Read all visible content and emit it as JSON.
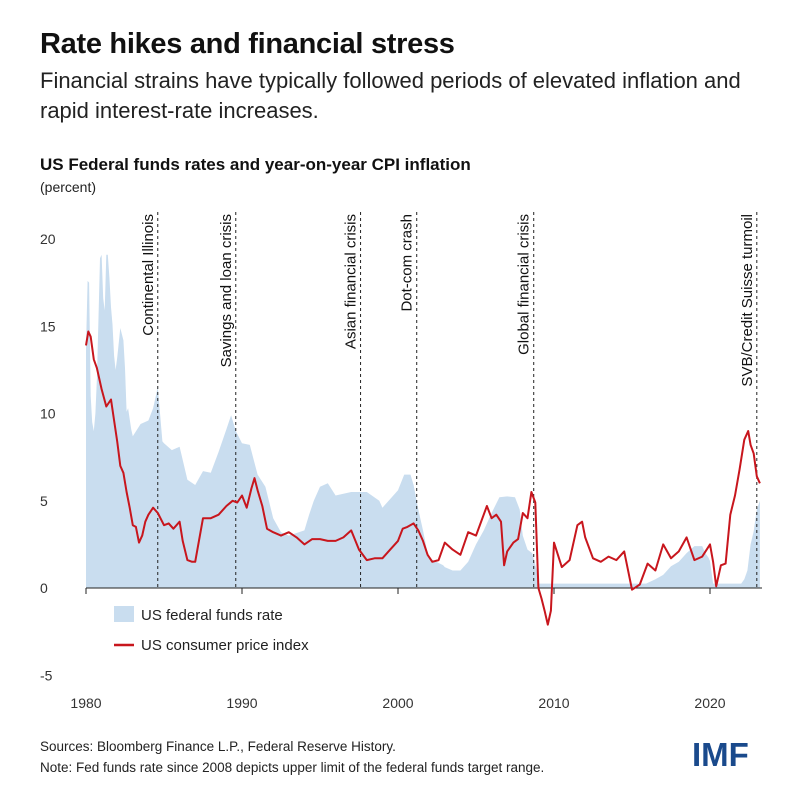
{
  "title": "Rate hikes and financial stress",
  "subtitle": "Financial strains have typically followed periods of elevated inflation and rapid interest-rate increases.",
  "chart_data": {
    "type": "area",
    "title": "US Federal funds rates and year-on-year CPI inflation",
    "unit_label": "(percent)",
    "xlabel": "",
    "ylabel": "",
    "xlim": [
      1980,
      2023.2
    ],
    "ylim": [
      -5,
      20
    ],
    "y_ticks": [
      -5,
      0,
      5,
      10,
      15,
      20
    ],
    "x_ticks": [
      1980,
      1990,
      2000,
      2010,
      2020
    ],
    "grid": false,
    "legend_placement": "bottom-left",
    "series": [
      {
        "name": "US federal funds rate",
        "kind": "area",
        "color": "#c9ddef",
        "x": [
          1980.0,
          1980.1,
          1980.2,
          1980.3,
          1980.4,
          1980.5,
          1980.6,
          1980.7,
          1980.8,
          1980.9,
          1981.0,
          1981.1,
          1981.2,
          1981.3,
          1981.4,
          1981.5,
          1981.6,
          1981.7,
          1981.8,
          1981.9,
          1982.0,
          1982.2,
          1982.4,
          1982.5,
          1982.6,
          1982.7,
          1982.9,
          1983.0,
          1983.5,
          1984.0,
          1984.3,
          1984.6,
          1984.9,
          1985.0,
          1985.5,
          1986.0,
          1986.5,
          1987.0,
          1987.5,
          1988.0,
          1988.5,
          1989.0,
          1989.3,
          1989.6,
          1990.0,
          1990.5,
          1991.0,
          1991.5,
          1992.0,
          1992.5,
          1993.0,
          1994.0,
          1994.3,
          1994.6,
          1995.0,
          1995.5,
          1996.0,
          1997.0,
          1998.0,
          1998.8,
          1999.0,
          1999.5,
          2000.0,
          2000.4,
          2000.8,
          2001.0,
          2001.3,
          2001.6,
          2001.9,
          2002.0,
          2002.9,
          2003.0,
          2003.5,
          2004.0,
          2004.5,
          2005.0,
          2005.5,
          2006.0,
          2006.5,
          2007.0,
          2007.5,
          2007.8,
          2008.0,
          2008.3,
          2008.6,
          2008.9,
          2009.0,
          2015.9,
          2016.5,
          2017.0,
          2017.5,
          2018.0,
          2018.5,
          2019.0,
          2019.5,
          2019.7,
          2019.9,
          2020.0,
          2020.2,
          2021.0,
          2022.0,
          2022.2,
          2022.4,
          2022.5,
          2022.6,
          2022.8,
          2023.0,
          2023.2
        ],
        "values": [
          13.8,
          17.6,
          17.5,
          11.0,
          9.5,
          9.0,
          10.0,
          12.0,
          15.5,
          18.9,
          19.1,
          16.6,
          15.9,
          19.1,
          19.1,
          17.8,
          16.1,
          15.1,
          13.3,
          12.5,
          13.2,
          14.9,
          14.2,
          12.6,
          10.1,
          10.3,
          9.1,
          8.7,
          9.4,
          9.6,
          10.3,
          11.5,
          8.4,
          8.3,
          7.9,
          8.1,
          6.2,
          5.9,
          6.7,
          6.6,
          7.8,
          9.1,
          9.9,
          9.0,
          8.3,
          8.2,
          6.5,
          5.8,
          4.0,
          3.2,
          3.0,
          3.3,
          4.2,
          5.0,
          5.8,
          6.0,
          5.3,
          5.5,
          5.5,
          5.0,
          4.6,
          5.1,
          5.6,
          6.5,
          6.5,
          5.9,
          4.5,
          3.3,
          2.0,
          1.7,
          1.3,
          1.2,
          1.0,
          1.0,
          1.5,
          2.5,
          3.3,
          4.3,
          5.2,
          5.25,
          5.2,
          4.5,
          3.0,
          2.2,
          2.0,
          1.0,
          0.25,
          0.25,
          0.5,
          0.75,
          1.25,
          1.5,
          2.0,
          2.4,
          2.4,
          2.0,
          1.75,
          1.55,
          0.25,
          0.25,
          0.25,
          0.5,
          1.0,
          1.75,
          2.5,
          3.25,
          4.5,
          5.0
        ]
      },
      {
        "name": "US consumer price index",
        "kind": "line",
        "color": "#c8161d",
        "x": [
          1980.0,
          1980.15,
          1980.3,
          1980.5,
          1980.7,
          1981.0,
          1981.3,
          1981.6,
          1981.8,
          1982.0,
          1982.2,
          1982.4,
          1982.6,
          1982.8,
          1983.0,
          1983.2,
          1983.4,
          1983.6,
          1983.8,
          1984.0,
          1984.3,
          1984.6,
          1985.0,
          1985.3,
          1985.6,
          1986.0,
          1986.2,
          1986.5,
          1986.8,
          1987.0,
          1987.5,
          1988.0,
          1988.5,
          1989.0,
          1989.4,
          1989.7,
          1990.0,
          1990.3,
          1990.6,
          1990.8,
          1991.0,
          1991.3,
          1991.6,
          1992.0,
          1992.5,
          1993.0,
          1993.5,
          1994.0,
          1994.5,
          1995.0,
          1995.5,
          1996.0,
          1996.5,
          1997.0,
          1997.5,
          1998.0,
          1998.5,
          1999.0,
          1999.5,
          2000.0,
          2000.3,
          2000.6,
          2001.0,
          2001.3,
          2001.6,
          2001.9,
          2002.2,
          2002.6,
          2003.0,
          2003.5,
          2004.0,
          2004.5,
          2005.0,
          2005.7,
          2006.0,
          2006.3,
          2006.6,
          2006.8,
          2007.0,
          2007.4,
          2007.7,
          2008.0,
          2008.3,
          2008.55,
          2008.8,
          2009.0,
          2009.2,
          2009.4,
          2009.6,
          2009.8,
          2010.0,
          2010.5,
          2011.0,
          2011.5,
          2011.8,
          2012.0,
          2012.5,
          2013.0,
          2013.5,
          2014.0,
          2014.5,
          2015.0,
          2015.5,
          2016.0,
          2016.5,
          2017.0,
          2017.5,
          2018.0,
          2018.5,
          2019.0,
          2019.5,
          2020.0,
          2020.2,
          2020.4,
          2020.7,
          2021.0,
          2021.3,
          2021.6,
          2021.9,
          2022.2,
          2022.45,
          2022.6,
          2022.8,
          2023.0,
          2023.2
        ],
        "values": [
          13.9,
          14.7,
          14.4,
          13.1,
          12.6,
          11.4,
          10.4,
          10.8,
          9.6,
          8.4,
          7.0,
          6.6,
          5.5,
          4.6,
          3.6,
          3.5,
          2.6,
          3.0,
          3.8,
          4.2,
          4.6,
          4.3,
          3.6,
          3.7,
          3.4,
          3.8,
          2.7,
          1.6,
          1.5,
          1.5,
          4.0,
          4.0,
          4.2,
          4.7,
          5.0,
          4.9,
          5.3,
          4.6,
          5.7,
          6.3,
          5.6,
          4.7,
          3.4,
          3.2,
          3.0,
          3.2,
          2.9,
          2.5,
          2.8,
          2.8,
          2.7,
          2.7,
          2.9,
          3.3,
          2.2,
          1.6,
          1.7,
          1.7,
          2.2,
          2.7,
          3.4,
          3.5,
          3.7,
          3.3,
          2.7,
          1.9,
          1.5,
          1.6,
          2.6,
          2.2,
          1.9,
          3.2,
          3.0,
          4.7,
          4.0,
          4.2,
          3.8,
          1.3,
          2.1,
          2.6,
          2.8,
          4.3,
          4.0,
          5.5,
          4.9,
          0.0,
          -0.6,
          -1.3,
          -2.1,
          -1.3,
          2.6,
          1.2,
          1.6,
          3.6,
          3.8,
          2.9,
          1.7,
          1.5,
          1.8,
          1.6,
          2.1,
          -0.1,
          0.2,
          1.4,
          1.0,
          2.5,
          1.7,
          2.1,
          2.9,
          1.6,
          1.8,
          2.5,
          1.5,
          0.1,
          1.3,
          1.4,
          4.2,
          5.3,
          6.8,
          8.5,
          9.0,
          8.2,
          7.7,
          6.4,
          6.0
        ]
      }
    ],
    "events": [
      {
        "label": "Continental Illinois",
        "x": 1984.6
      },
      {
        "label": "Savings and loan crisis",
        "x": 1989.6
      },
      {
        "label": "Asian financial crisis",
        "x": 1997.6
      },
      {
        "label": "Dot-com crash",
        "x": 2001.2
      },
      {
        "label": "Global financial crisis",
        "x": 2008.7
      },
      {
        "label": "SVB/Credit Suisse turmoil",
        "x": 2023.0
      }
    ]
  },
  "footer": {
    "sources": "Sources: Bloomberg Finance L.P., Federal Reserve History.",
    "note": "Note: Fed funds rate since 2008 depicts upper limit of the federal funds target range."
  },
  "logo_text": "IMF",
  "colors": {
    "area": "#c9ddef",
    "line": "#c8161d",
    "brand": "#1a4a8c"
  }
}
